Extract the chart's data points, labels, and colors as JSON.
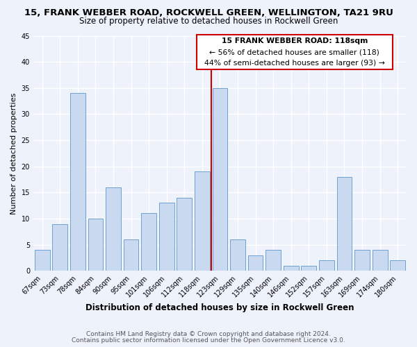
{
  "title_line1": "15, FRANK WEBBER ROAD, ROCKWELL GREEN, WELLINGTON, TA21 9RU",
  "title_line2": "Size of property relative to detached houses in Rockwell Green",
  "xlabel": "Distribution of detached houses by size in Rockwell Green",
  "ylabel": "Number of detached properties",
  "footer_line1": "Contains HM Land Registry data © Crown copyright and database right 2024.",
  "footer_line2": "Contains public sector information licensed under the Open Government Licence v3.0.",
  "annotation_line1": "15 FRANK WEBBER ROAD: 118sqm",
  "annotation_line2": "← 56% of detached houses are smaller (118)",
  "annotation_line3": "44% of semi-detached houses are larger (93) →",
  "categories": [
    "67sqm",
    "73sqm",
    "78sqm",
    "84sqm",
    "90sqm",
    "95sqm",
    "101sqm",
    "106sqm",
    "112sqm",
    "118sqm",
    "123sqm",
    "129sqm",
    "135sqm",
    "140sqm",
    "146sqm",
    "152sqm",
    "157sqm",
    "163sqm",
    "169sqm",
    "174sqm",
    "180sqm"
  ],
  "values": [
    4,
    9,
    34,
    10,
    16,
    6,
    11,
    13,
    14,
    19,
    35,
    6,
    3,
    4,
    1,
    1,
    2,
    18,
    4,
    4,
    2
  ],
  "bar_color": "#c9d9f0",
  "bar_edge_color": "#6fa0d0",
  "highlight_index": 9,
  "highlight_line_color": "#cc0000",
  "ylim": [
    0,
    45
  ],
  "yticks": [
    0,
    5,
    10,
    15,
    20,
    25,
    30,
    35,
    40,
    45
  ],
  "background_color": "#eef2fb",
  "annotation_box_color": "#ffffff",
  "annotation_box_edge": "#cc0000",
  "title_fontsize": 9.5,
  "subtitle_fontsize": 8.5,
  "xlabel_fontsize": 8.5,
  "ylabel_fontsize": 8.0,
  "tick_fontsize": 7.0,
  "annotation_fontsize": 7.8,
  "footer_fontsize": 6.5
}
